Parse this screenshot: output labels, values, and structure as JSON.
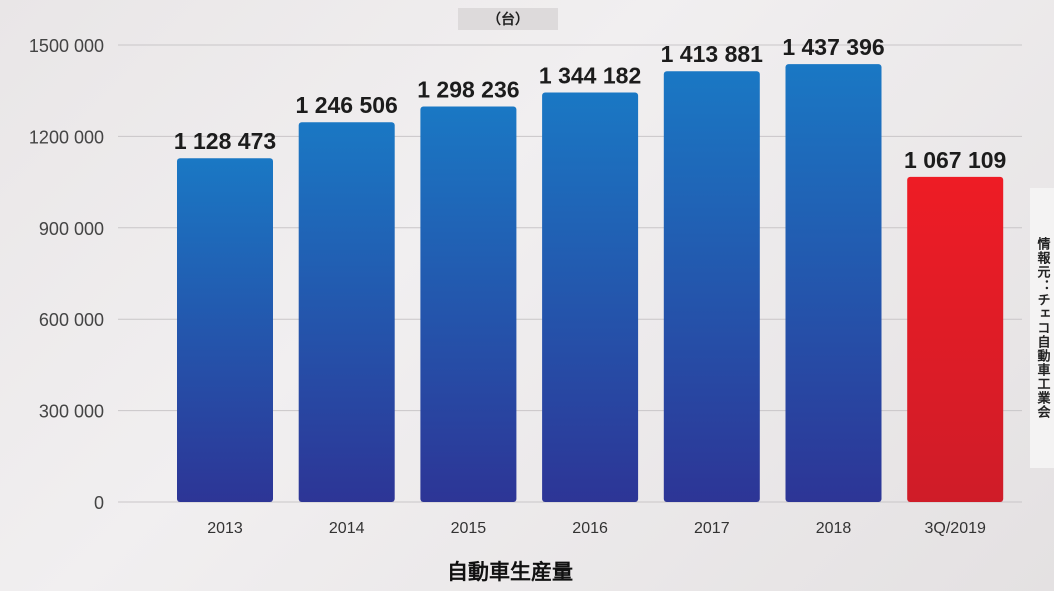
{
  "chart_data": {
    "type": "bar",
    "unit": "（台）",
    "categories": [
      "2013",
      "2014",
      "2015",
      "2016",
      "2017",
      "2018",
      "3Q/2019"
    ],
    "values": [
      1128473,
      1246506,
      1298236,
      1344182,
      1413881,
      1437396,
      1067109
    ],
    "value_labels": [
      "1 128 473",
      "1 246 506",
      "1 298 236",
      "1 344 182",
      "1 413 881",
      "1 437 396",
      "1 067 109"
    ],
    "yticks": [
      0,
      300000,
      600000,
      900000,
      1200000,
      1500000
    ],
    "ytick_labels": [
      "0",
      "300 000",
      "600 000",
      "900 000",
      "1200 000",
      "1500 000"
    ],
    "ylim": [
      0,
      1500000
    ],
    "xlabel": "自動車生産量",
    "ylabel": "",
    "grid": true,
    "colors": {
      "bar_top": "#1a78c4",
      "bar_bottom": "#2d3596",
      "highlight_top": "#ee1c25",
      "highlight_bottom": "#cf1c28",
      "highlight_index": 6
    },
    "source": "情報元：チェコ自動車工業会"
  }
}
